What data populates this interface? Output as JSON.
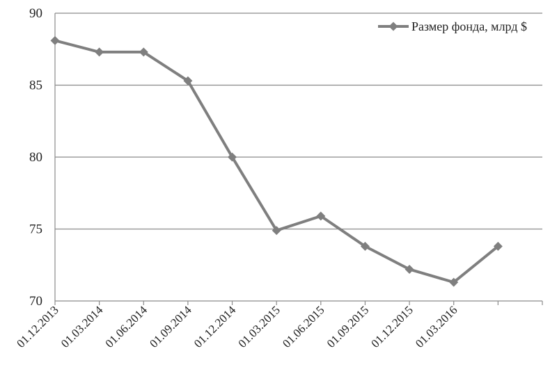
{
  "chart_data": {
    "type": "line",
    "title": "",
    "xlabel": "",
    "ylabel": "",
    "categories": [
      "01.12.2013",
      "01.03.2014",
      "01.06.2014",
      "01.09.2014",
      "01.12.2014",
      "01.03.2015",
      "01.06.2015",
      "01.09.2015",
      "01.12.2015",
      "01.03.2016",
      ""
    ],
    "ylim": [
      70,
      90
    ],
    "yticks": [
      70,
      75,
      80,
      85,
      90
    ],
    "grid": true,
    "legend_position": "top-right",
    "series": [
      {
        "name": "Размер фонда, млрд $",
        "color": "#7f7f7f",
        "marker": "diamond",
        "values": [
          88.1,
          87.3,
          87.3,
          85.3,
          80.0,
          74.9,
          75.9,
          73.8,
          72.2,
          71.3,
          73.8
        ]
      }
    ]
  }
}
